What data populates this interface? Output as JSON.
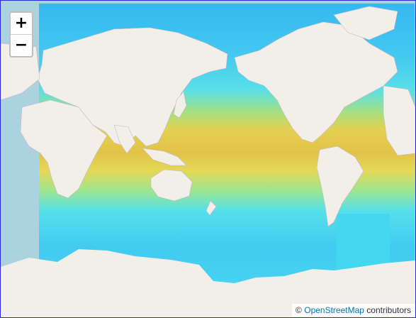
{
  "zoom": {
    "in_label": "+",
    "out_label": "−"
  },
  "attribution": {
    "copyright": "©",
    "link_text": "OpenStreetMap",
    "suffix": "contributors"
  },
  "colors": {
    "ocean": "#aad3df",
    "land": "#f2efe9",
    "overlay_cool": "#34c6f2",
    "overlay_mid": "#4fe3e6",
    "overlay_warm": "#e6c94a",
    "overlay_hot": "#e2b33c"
  }
}
